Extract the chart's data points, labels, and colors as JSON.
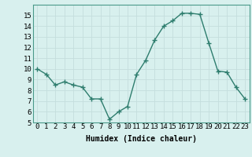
{
  "x": [
    0,
    1,
    2,
    3,
    4,
    5,
    6,
    7,
    8,
    9,
    10,
    11,
    12,
    13,
    14,
    15,
    16,
    17,
    18,
    19,
    20,
    21,
    22,
    23
  ],
  "y": [
    10.0,
    9.5,
    8.5,
    8.8,
    8.5,
    8.3,
    7.2,
    7.2,
    5.3,
    6.0,
    6.5,
    9.5,
    10.8,
    12.7,
    14.0,
    14.5,
    15.2,
    15.2,
    15.1,
    12.4,
    9.8,
    9.7,
    8.3,
    7.2
  ],
  "line_color": "#2e7d6e",
  "bg_color": "#d8f0ee",
  "grid_color": "#c4dedd",
  "xlabel": "Humidex (Indice chaleur)",
  "ylim": [
    5,
    16
  ],
  "xlim": [
    -0.5,
    23.5
  ],
  "yticks": [
    5,
    6,
    7,
    8,
    9,
    10,
    11,
    12,
    13,
    14,
    15
  ],
  "xticks": [
    0,
    1,
    2,
    3,
    4,
    5,
    6,
    7,
    8,
    9,
    10,
    11,
    12,
    13,
    14,
    15,
    16,
    17,
    18,
    19,
    20,
    21,
    22,
    23
  ],
  "xtick_labels": [
    "0",
    "1",
    "2",
    "3",
    "4",
    "5",
    "6",
    "7",
    "8",
    "9",
    "10",
    "11",
    "12",
    "13",
    "14",
    "15",
    "16",
    "17",
    "18",
    "19",
    "20",
    "21",
    "22",
    "23"
  ],
  "marker": "+",
  "marker_size": 4,
  "line_width": 1.0,
  "xlabel_fontsize": 7,
  "tick_fontsize": 6.5
}
